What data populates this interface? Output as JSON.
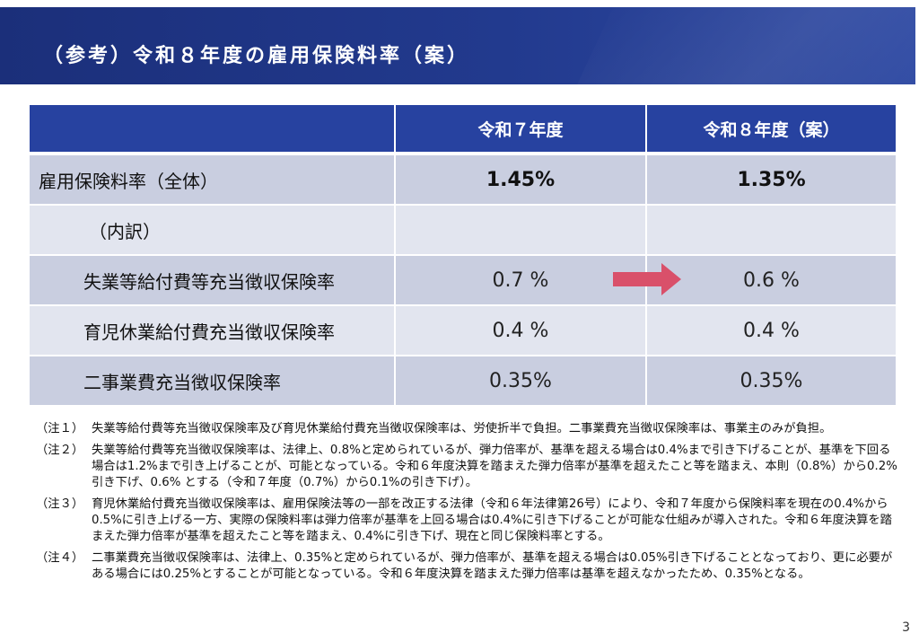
{
  "header": {
    "title": "（参考）令和８年度の雇用保険料率（案）",
    "colors": {
      "banner": "#223a8e",
      "table_header": "#2742a0",
      "arrow": "#d9506a"
    }
  },
  "table": {
    "columns": [
      "",
      "令和７年度",
      "令和８年度（案）"
    ],
    "total_row": {
      "label": "雇用保険料率（全体）",
      "fy7": "1.45%",
      "fy8": "1.35%"
    },
    "breakdown_label": "（内訳）",
    "rows": [
      {
        "label": "失業等給付費等充当徴収保険率",
        "fy7": "0.7 %",
        "fy8": "0.6 %"
      },
      {
        "label": "育児休業給付費充当徴収保険率",
        "fy7": "0.4 %",
        "fy8": "0.4 %"
      },
      {
        "label": "二事業費充当徴収保険率",
        "fy7": "0.35%",
        "fy8": "0.35%"
      }
    ],
    "arrow_icon": "right-arrow-icon"
  },
  "notes": [
    {
      "label": "（注１）",
      "text": "失業等給付費等充当徴収保険率及び育児休業給付費充当徴収保険率は、労使折半で負担。二事業費充当徴収保険率は、事業主のみが負担。"
    },
    {
      "label": "（注２）",
      "text": "失業等給付費等充当徴収保険率は、法律上、0.8%と定められているが、弾力倍率が、基準を超える場合は0.4%まで引き下げることが、基準を下回る場合は1.2%まで引き上げることが、可能となっている。令和６年度決算を踏まえた弾力倍率が基準を超えたこと等を踏まえ、本則（0.8%）から0.2%引き下げ、0.6% とする（令和７年度（0.7%）から0.1%の引き下げ）。"
    },
    {
      "label": "（注３）",
      "text": "育児休業給付費充当徴収保険率は、雇用保険法等の一部を改正する法律（令和６年法律第26号）により、令和７年度から保険料率を現在の0.4%から0.5%に引き上げる一方、実際の保険料率は弾力倍率が基準を上回る場合は0.4%に引き下げることが可能な仕組みが導入された。令和６年度決算を踏まえた弾力倍率が基準を超えたこと等を踏まえ、0.4%に引き下げ、現在と同じ保険料率とする。"
    },
    {
      "label": "（注４）",
      "text": "二事業費充当徴収保険率は、法律上、0.35%と定められているが、弾力倍率が、基準を超える場合は0.05%引き下げることとなっており、更に必要がある場合には0.25%とすることが可能となっている。令和６年度決算を踏まえた弾力倍率は基準を超えなかったため、0.35%となる。"
    }
  ],
  "page_number": "3"
}
